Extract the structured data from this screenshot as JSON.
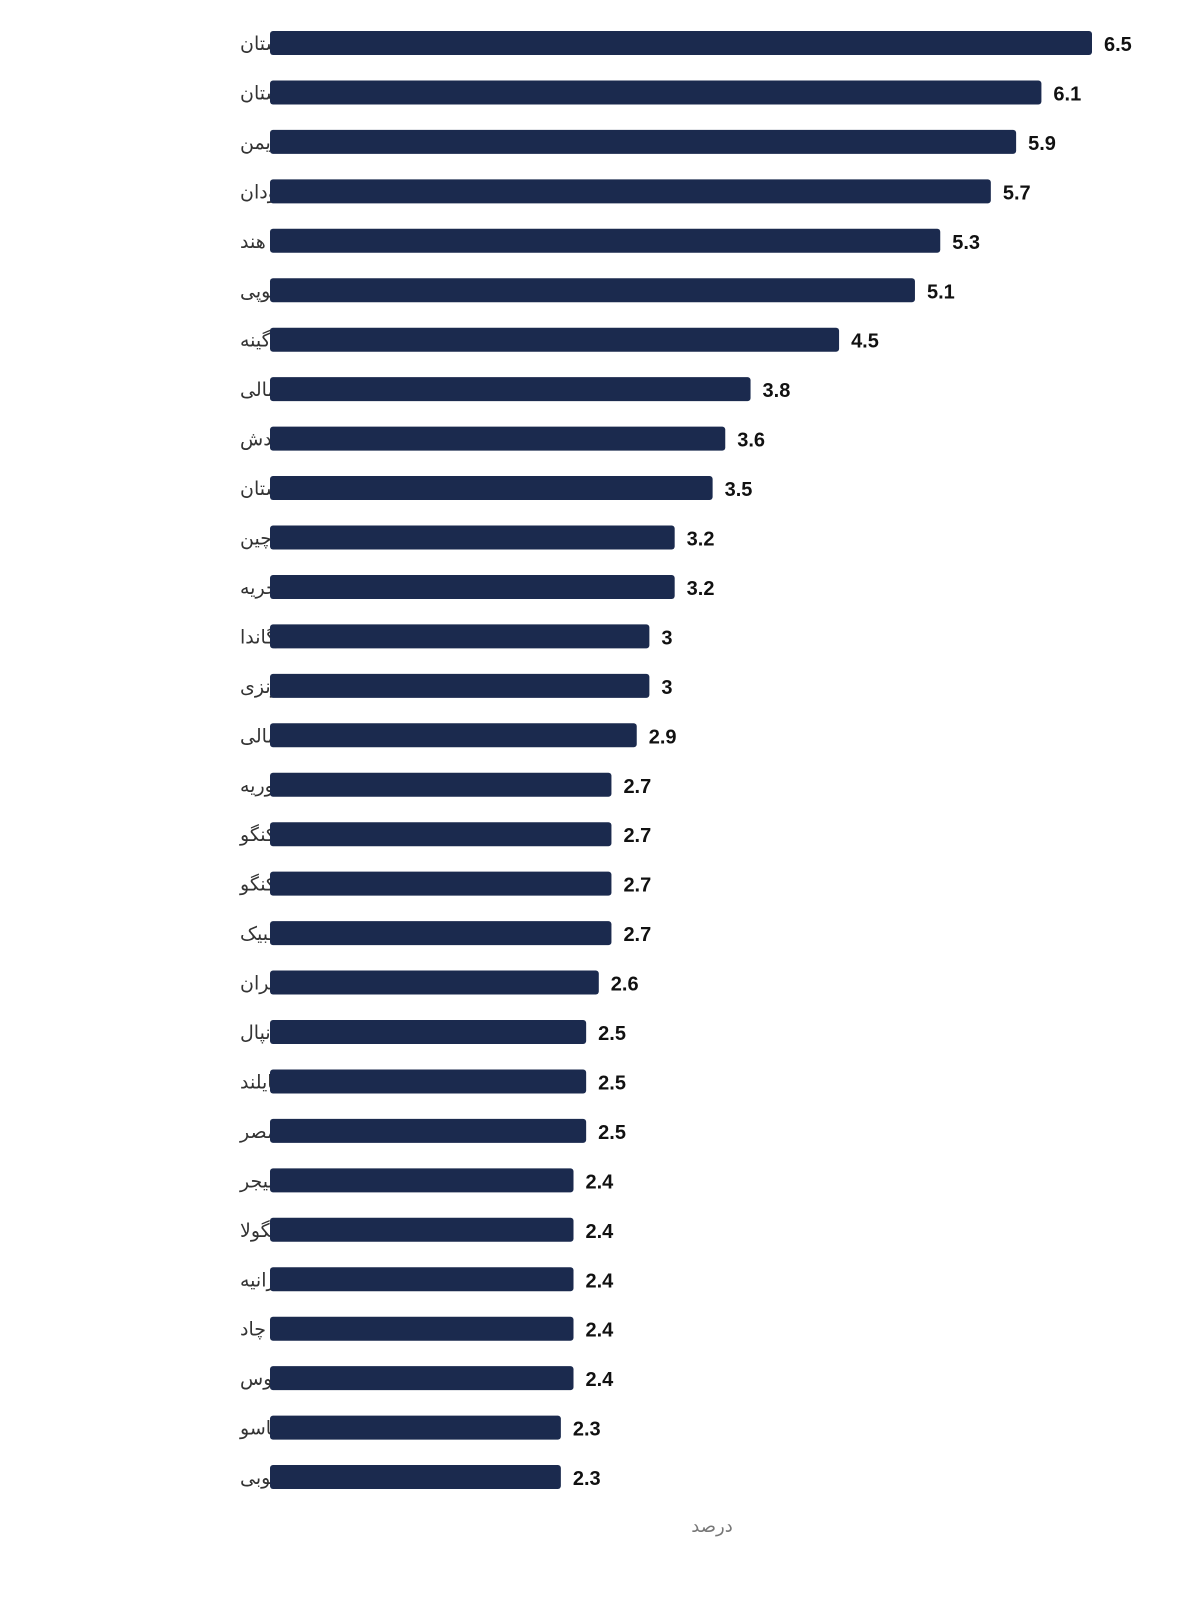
{
  "chart_data": {
    "type": "bar",
    "orientation": "horizontal",
    "categories": [
      "افغانستان",
      "پاکستان",
      "یمن",
      "سودان",
      "هند",
      "اتیوپی",
      "گینه",
      "سومالی",
      "بنگلادش",
      "تاجیکستان",
      "چین",
      "نیجریه",
      "اوگاندا",
      "اندونزی",
      "مالی",
      "سوریه",
      "جمهوری دموکراتیک کنگو",
      "کنگو",
      "موزامبیک",
      "ایران",
      "نپال",
      "تایلند",
      "مصر",
      "نیجر",
      "انگولا",
      "تانزانیه",
      "چاد",
      "لائوس",
      "بورکینافاسو",
      "افریقای جنوبی"
    ],
    "values": [
      6.5,
      6.1,
      5.9,
      5.7,
      5.3,
      5.1,
      4.5,
      3.8,
      3.6,
      3.5,
      3.2,
      3.2,
      3,
      3,
      2.9,
      2.7,
      2.7,
      2.7,
      2.7,
      2.6,
      2.5,
      2.5,
      2.5,
      2.4,
      2.4,
      2.4,
      2.4,
      2.4,
      2.3,
      2.3
    ],
    "value_labels": [
      "6.5",
      "6.1",
      "5.9",
      "5.7",
      "5.3",
      "5.1",
      "4.5",
      "3.8",
      "3.6",
      "3.5",
      "3.2",
      "3.2",
      "3",
      "3",
      "2.9",
      "2.7",
      "2.7",
      "2.7",
      "2.7",
      "2.6",
      "2.5",
      "2.5",
      "2.5",
      "2.4",
      "2.4",
      "2.4",
      "2.4",
      "2.4",
      "2.3",
      "2.3"
    ],
    "title": "",
    "xlabel": "درصد",
    "ylabel": "",
    "xlim": [
      0,
      6.5
    ],
    "grid": false,
    "legend": "none",
    "colors": {
      "bar": "#1b2a4e",
      "value_text": "#111111",
      "category_text": "#333333",
      "axis_text": "#777777"
    }
  }
}
